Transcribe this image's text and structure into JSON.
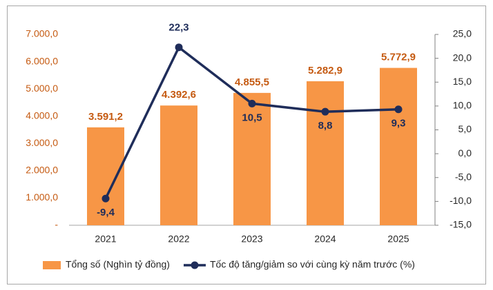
{
  "chart_data": {
    "type": "combo",
    "categories": [
      "2021",
      "2022",
      "2023",
      "2024",
      "2025"
    ],
    "series": [
      {
        "name": "Tổng số (Nghìn tỷ đồng)",
        "type": "bar",
        "color": "#f79646",
        "label_color": "#c55a11",
        "values": [
          3591.2,
          4392.6,
          4855.5,
          5282.9,
          5772.9
        ],
        "value_labels": [
          "3.591,2",
          "4.392,6",
          "4.855,5",
          "5.282,9",
          "5.772,9"
        ]
      },
      {
        "name": "Tốc độ tăng/giảm so với cùng kỳ năm trước (%)",
        "type": "line",
        "axis": "y2",
        "color": "#1f2d5a",
        "label_color": "#1f2d5a",
        "values": [
          -9.4,
          22.3,
          10.5,
          8.8,
          9.3
        ],
        "value_labels": [
          "-9,4",
          "22,3",
          "10,5",
          "8,8",
          "9,3"
        ]
      }
    ],
    "ylim": [
      0,
      7000
    ],
    "yticks": [
      {
        "value": 0,
        "label": "-"
      },
      {
        "value": 1000,
        "label": "1.000,0"
      },
      {
        "value": 2000,
        "label": "2.000,0"
      },
      {
        "value": 3000,
        "label": "3.000,0"
      },
      {
        "value": 4000,
        "label": "4.000,0"
      },
      {
        "value": 5000,
        "label": "5.000,0"
      },
      {
        "value": 6000,
        "label": "6.000,0"
      },
      {
        "value": 7000,
        "label": "7.000,0"
      }
    ],
    "y_tick_color": "#c55a11",
    "y2lim": [
      -15,
      25
    ],
    "y2ticks": [
      {
        "value": -15,
        "label": "-15,0"
      },
      {
        "value": -10,
        "label": "-10,0"
      },
      {
        "value": -5,
        "label": "-5,0"
      },
      {
        "value": 0,
        "label": "0,0"
      },
      {
        "value": 5,
        "label": "5,0"
      },
      {
        "value": 10,
        "label": "10,0"
      },
      {
        "value": 15,
        "label": "15,0"
      },
      {
        "value": 20,
        "label": "20,0"
      },
      {
        "value": 25,
        "label": "25,0"
      }
    ],
    "legend": "bottom"
  }
}
